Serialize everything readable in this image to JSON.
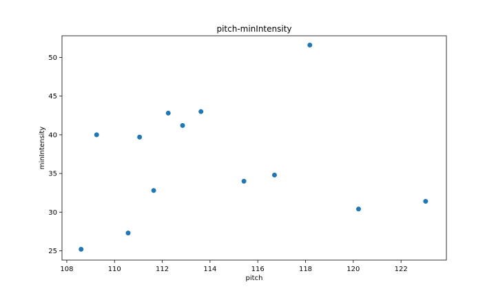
{
  "chart_data": {
    "type": "scatter",
    "title": "pitch-minIntensity",
    "xlabel": "pitch",
    "ylabel": "minIntensity",
    "xlim": [
      107.8,
      123.9
    ],
    "ylim": [
      23.8,
      52.8
    ],
    "xticks": [
      108,
      110,
      112,
      114,
      116,
      118,
      120,
      122
    ],
    "yticks": [
      25,
      30,
      35,
      40,
      45,
      50
    ],
    "grid": false,
    "marker_color": "#1f77b4",
    "points": [
      {
        "x": 108.6,
        "y": 25.2
      },
      {
        "x": 109.25,
        "y": 40.0
      },
      {
        "x": 110.57,
        "y": 27.3
      },
      {
        "x": 111.05,
        "y": 39.7
      },
      {
        "x": 111.64,
        "y": 32.8
      },
      {
        "x": 112.25,
        "y": 42.8
      },
      {
        "x": 112.85,
        "y": 41.2
      },
      {
        "x": 113.62,
        "y": 43.0
      },
      {
        "x": 115.42,
        "y": 34.0
      },
      {
        "x": 116.7,
        "y": 34.8
      },
      {
        "x": 118.18,
        "y": 51.6
      },
      {
        "x": 120.22,
        "y": 30.4
      },
      {
        "x": 123.03,
        "y": 31.4
      }
    ]
  }
}
